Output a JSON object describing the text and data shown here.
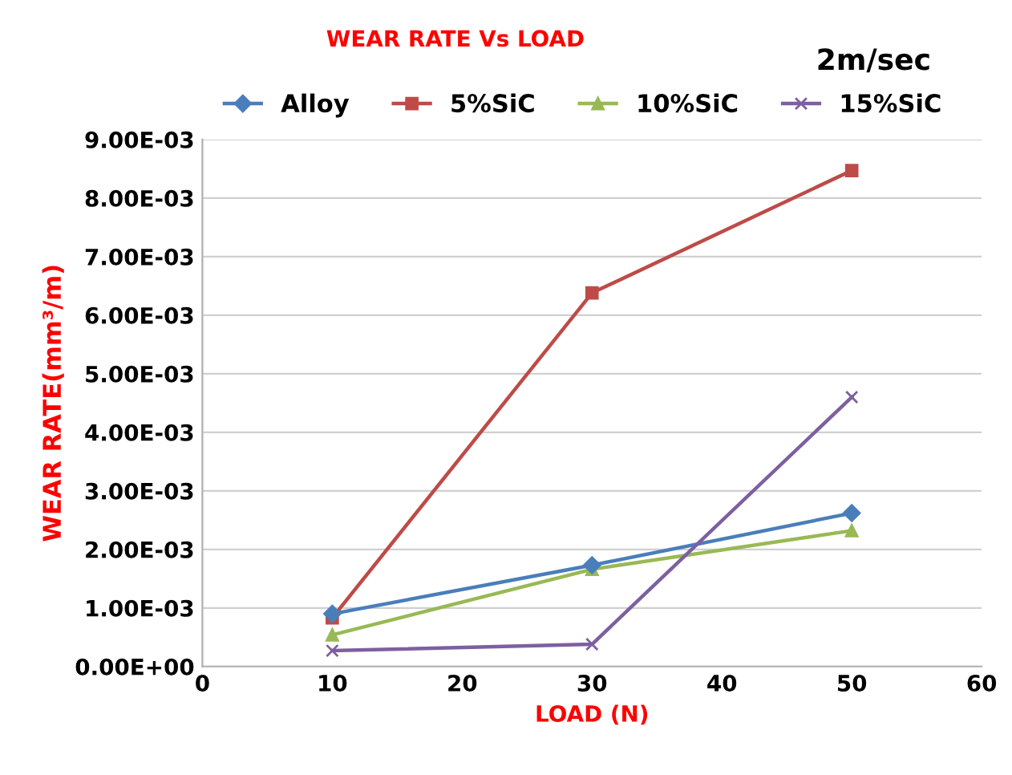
{
  "chart_data": {
    "type": "line",
    "title": "WEAR RATE Vs LOAD",
    "xlabel": "LOAD (N)",
    "ylabel": "WEAR RATE(mm³/m)",
    "annotations": [
      "2m/sec"
    ],
    "x": [
      10,
      30,
      50
    ],
    "series": [
      {
        "name": "Alloy",
        "color": "#4a7ebb",
        "marker": "diamond",
        "values": [
          0.0009,
          0.00173,
          0.00262
        ]
      },
      {
        "name": "5%SiC",
        "color": "#be4b48",
        "marker": "square",
        "values": [
          0.00083,
          0.00638,
          0.00847
        ]
      },
      {
        "name": "10%SiC",
        "color": "#98b954",
        "marker": "triangle",
        "values": [
          0.00054,
          0.00166,
          0.00232
        ]
      },
      {
        "name": "15%SiC",
        "color": "#7d60a0",
        "marker": "cross",
        "values": [
          0.00027,
          0.00038,
          0.0046
        ]
      }
    ],
    "xlim": [
      0,
      60
    ],
    "xticks": [
      0,
      10,
      20,
      30,
      40,
      50,
      60
    ],
    "ylim": [
      0,
      0.009
    ],
    "yticks": [
      {
        "value": 0,
        "label": "0.00E+00"
      },
      {
        "value": 0.001,
        "label": "1.00E-03"
      },
      {
        "value": 0.002,
        "label": "2.00E-03"
      },
      {
        "value": 0.003,
        "label": "3.00E-03"
      },
      {
        "value": 0.004,
        "label": "4.00E-03"
      },
      {
        "value": 0.005,
        "label": "5.00E-03"
      },
      {
        "value": 0.006,
        "label": "6.00E-03"
      },
      {
        "value": 0.007,
        "label": "7.00E-03"
      },
      {
        "value": 0.008,
        "label": "8.00E-03"
      },
      {
        "value": 0.009,
        "label": "9.00E-03"
      }
    ],
    "grid": "y",
    "legend": "top",
    "line_style": "solid"
  }
}
